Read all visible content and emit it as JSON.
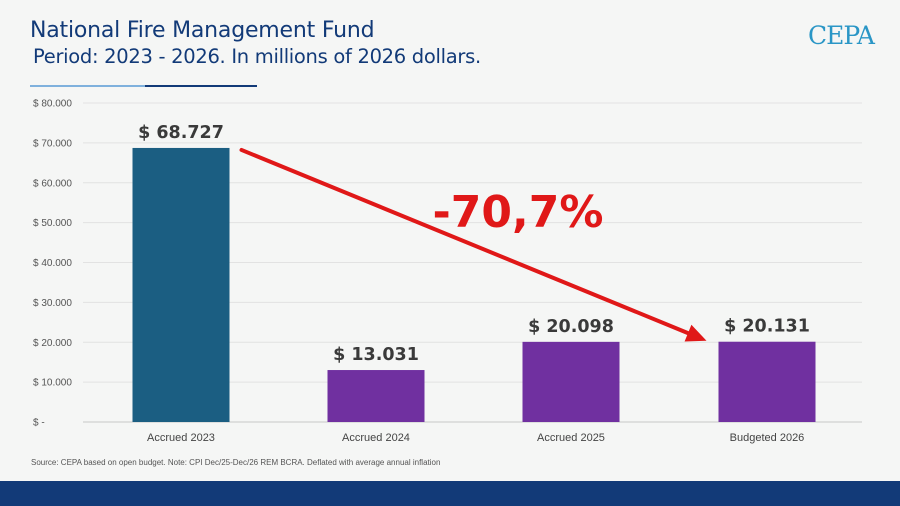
{
  "header": {
    "title": "National Fire Management Fund",
    "subtitle": "Period: 2023 - 2026. In millions of 2026 dollars.",
    "logo": "CEPA"
  },
  "footer": {
    "source": "Source: CEPA based on open budget. Note: CPI Dec/25-Dec/26 REM BCRA. Deflated with average annual inflation"
  },
  "colors": {
    "title": "#123a78",
    "bar_2023": "#1b5e82",
    "bar_other": "#7030a0",
    "arrow": "#e01818",
    "footer_band": "#123a78"
  },
  "chart_data": {
    "type": "bar",
    "categories": [
      "Accrued 2023",
      "Accrued 2024",
      "Accrued 2025",
      "Budgeted 2026"
    ],
    "values": [
      68727,
      13031,
      20098,
      20131
    ],
    "data_labels": [
      "$ 68.727",
      "$ 13.031",
      "$ 20.098",
      "$ 20.131"
    ],
    "ylim": [
      0,
      80000
    ],
    "yticks": [
      0,
      10000,
      20000,
      30000,
      40000,
      50000,
      60000,
      70000,
      80000
    ],
    "ytick_labels": [
      "$ -",
      "$ 10.000",
      "$ 20.000",
      "$ 30.000",
      "$ 40.000",
      "$ 50.000",
      "$ 60.000",
      "$ 70.000",
      "$ 80.000"
    ],
    "grid": true,
    "bar_colors": [
      "#1b5e82",
      "#7030a0",
      "#7030a0",
      "#7030a0"
    ],
    "annotation": {
      "text": "-70,7%",
      "from_category": "Accrued 2023",
      "to_category": "Budgeted 2026"
    }
  }
}
